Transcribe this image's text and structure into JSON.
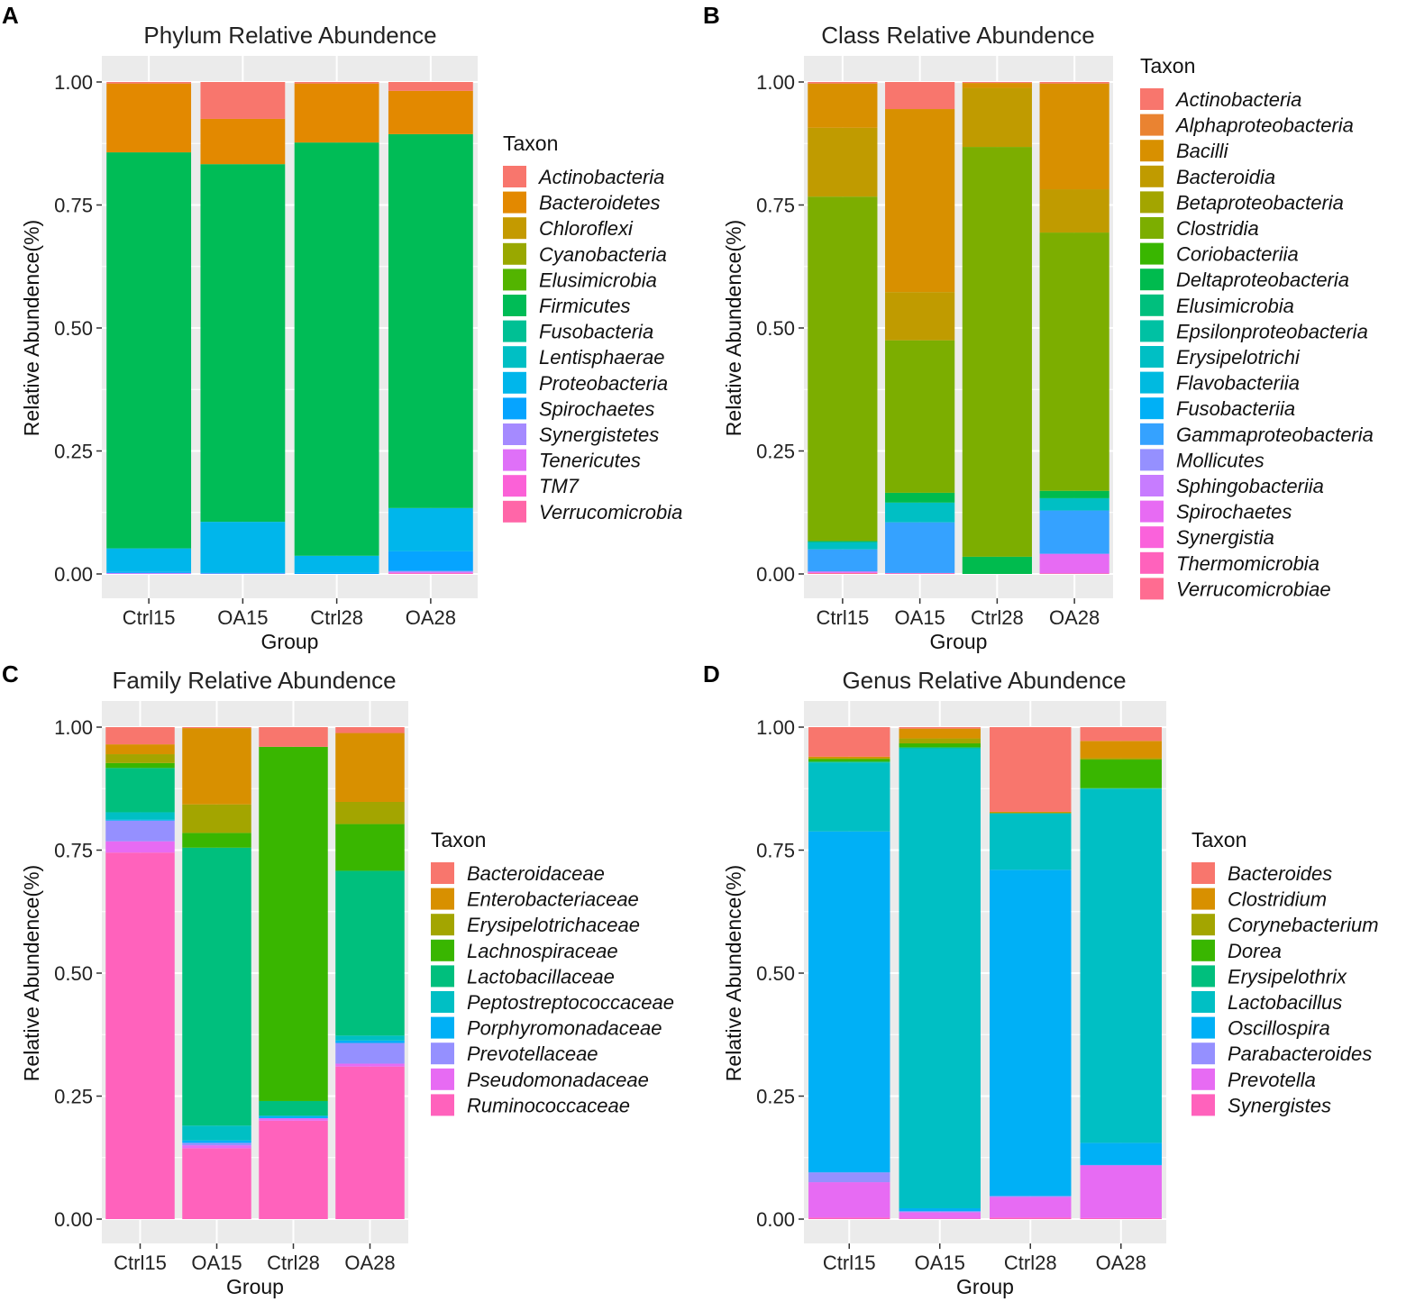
{
  "chart_data": [
    {
      "panel": "A",
      "type": "bar",
      "stacked": true,
      "title": "Phylum Relative Abundence",
      "xlabel": "Group",
      "ylabel": "Relative Abundence(%)",
      "ylim": [
        0,
        1
      ],
      "yticks": [
        "0.00",
        "0.25",
        "0.50",
        "0.75",
        "1.00"
      ],
      "categories": [
        "Ctrl15",
        "OA15",
        "Ctrl28",
        "OA28"
      ],
      "legend_title": "Taxon",
      "series": [
        {
          "name": "Actinobacteria",
          "color": "#F8766D",
          "values": [
            0.003,
            0.075,
            0.003,
            0.018
          ]
        },
        {
          "name": "Bacteroidetes",
          "color": "#E38900",
          "values": [
            0.14,
            0.092,
            0.12,
            0.088
          ]
        },
        {
          "name": "Chloroflexi",
          "color": "#C49A00",
          "values": [
            0,
            0,
            0,
            0
          ]
        },
        {
          "name": "Cyanobacteria",
          "color": "#99A800",
          "values": [
            0,
            0,
            0,
            0
          ]
        },
        {
          "name": "Elusimicrobia",
          "color": "#53B400",
          "values": [
            0,
            0,
            0,
            0
          ]
        },
        {
          "name": "Firmicutes",
          "color": "#00BC56",
          "values": [
            0.805,
            0.727,
            0.84,
            0.76
          ]
        },
        {
          "name": "Fusobacteria",
          "color": "#00C094",
          "values": [
            0,
            0,
            0,
            0
          ]
        },
        {
          "name": "Lentisphaerae",
          "color": "#00BFC4",
          "values": [
            0,
            0,
            0,
            0
          ]
        },
        {
          "name": "Proteobacteria",
          "color": "#00B6EB",
          "values": [
            0.048,
            0.104,
            0.035,
            0.088
          ]
        },
        {
          "name": "Spirochaetes",
          "color": "#06A4FF",
          "values": [
            0.002,
            0.001,
            0.002,
            0.04
          ]
        },
        {
          "name": "Synergistetes",
          "color": "#A58AFF",
          "values": [
            0.001,
            0.001,
            0,
            0.002
          ]
        },
        {
          "name": "Tenericutes",
          "color": "#DF70F8",
          "values": [
            0.001,
            0,
            0,
            0.002
          ]
        },
        {
          "name": "TM7",
          "color": "#FB61D7",
          "values": [
            0,
            0,
            0,
            0.001
          ]
        },
        {
          "name": "Verrucomicrobia",
          "color": "#FF66A8",
          "values": [
            0,
            0,
            0,
            0.001
          ]
        }
      ]
    },
    {
      "panel": "B",
      "type": "bar",
      "stacked": true,
      "title": "Class Relative Abundence",
      "xlabel": "Group",
      "ylabel": "Relative Abundence(%)",
      "ylim": [
        0,
        1
      ],
      "yticks": [
        "0.00",
        "0.25",
        "0.50",
        "0.75",
        "1.00"
      ],
      "categories": [
        "Ctrl15",
        "OA15",
        "Ctrl28",
        "OA28"
      ],
      "legend_title": "Taxon",
      "series": [
        {
          "name": "Actinobacteria",
          "color": "#F8766D",
          "values": [
            0.003,
            0.055,
            0.002,
            0.003
          ]
        },
        {
          "name": "Alphaproteobacteria",
          "color": "#EA8331",
          "values": [
            0,
            0,
            0,
            0
          ]
        },
        {
          "name": "Bacilli",
          "color": "#D89000",
          "values": [
            0.09,
            0.372,
            0.01,
            0.215
          ]
        },
        {
          "name": "Bacteroidia",
          "color": "#C09B00",
          "values": [
            0.14,
            0.098,
            0.12,
            0.088
          ]
        },
        {
          "name": "Betaproteobacteria",
          "color": "#A3A500",
          "values": [
            0,
            0,
            0,
            0
          ]
        },
        {
          "name": "Clostridia",
          "color": "#7CAE00",
          "values": [
            0.7,
            0.31,
            0.833,
            0.525
          ]
        },
        {
          "name": "Coriobacteriia",
          "color": "#39B600",
          "values": [
            0,
            0,
            0,
            0
          ]
        },
        {
          "name": "Deltaproteobacteria",
          "color": "#00BB4E",
          "values": [
            0.002,
            0.02,
            0.035,
            0.015
          ]
        },
        {
          "name": "Elusimicrobia",
          "color": "#00BF7D",
          "values": [
            0,
            0,
            0,
            0
          ]
        },
        {
          "name": "Epsilonproteobacteria",
          "color": "#00C1A3",
          "values": [
            0,
            0,
            0,
            0
          ]
        },
        {
          "name": "Erysipelotrichi",
          "color": "#00BFC4",
          "values": [
            0.015,
            0.04,
            0,
            0.025
          ]
        },
        {
          "name": "Flavobacteriia",
          "color": "#00BAE0",
          "values": [
            0,
            0,
            0,
            0
          ]
        },
        {
          "name": "Fusobacteriia",
          "color": "#00B0F6",
          "values": [
            0,
            0,
            0,
            0
          ]
        },
        {
          "name": "Gammaproteobacteria",
          "color": "#35A2FF",
          "values": [
            0.045,
            0.103,
            0,
            0.088
          ]
        },
        {
          "name": "Mollicutes",
          "color": "#9590FF",
          "values": [
            0,
            0,
            0,
            0
          ]
        },
        {
          "name": "Sphingobacteriia",
          "color": "#C77CFF",
          "values": [
            0,
            0,
            0,
            0
          ]
        },
        {
          "name": "Spirochaetes",
          "color": "#E76BF3",
          "values": [
            0.003,
            0.001,
            0,
            0.04
          ]
        },
        {
          "name": "Synergistia",
          "color": "#FA62DB",
          "values": [
            0,
            0,
            0,
            0
          ]
        },
        {
          "name": "Thermomicrobia",
          "color": "#FF62BC",
          "values": [
            0,
            0,
            0,
            0
          ]
        },
        {
          "name": "Verrucomicrobiae",
          "color": "#FF6C91",
          "values": [
            0.002,
            0.001,
            0,
            0.001
          ]
        }
      ]
    },
    {
      "panel": "C",
      "type": "bar",
      "stacked": true,
      "title": "Family Relative Abundence",
      "xlabel": "Group",
      "ylabel": "Relative Abundence(%)",
      "ylim": [
        0,
        1
      ],
      "yticks": [
        "0.00",
        "0.25",
        "0.50",
        "0.75",
        "1.00"
      ],
      "categories": [
        "Ctrl15",
        "OA15",
        "Ctrl28",
        "OA28"
      ],
      "legend_title": "Taxon",
      "series": [
        {
          "name": "Bacteroidaceae",
          "color": "#F8766D",
          "values": [
            0.035,
            0.002,
            0.04,
            0.012
          ]
        },
        {
          "name": "Enterobacteriaceae",
          "color": "#D89000",
          "values": [
            0.02,
            0.155,
            0,
            0.14
          ]
        },
        {
          "name": "Erysipelotrichaceae",
          "color": "#A3A500",
          "values": [
            0.018,
            0.058,
            0,
            0.045
          ]
        },
        {
          "name": "Lachnospiraceae",
          "color": "#39B600",
          "values": [
            0.01,
            0.03,
            0.72,
            0.095
          ]
        },
        {
          "name": "Lactobacillaceae",
          "color": "#00BF7D",
          "values": [
            0.09,
            0.565,
            0.03,
            0.335
          ]
        },
        {
          "name": "Peptostreptococcaceae",
          "color": "#00BFC4",
          "values": [
            0.015,
            0.03,
            0,
            0.01
          ]
        },
        {
          "name": "Porphyromonadaceae",
          "color": "#00B0F6",
          "values": [
            0.002,
            0.005,
            0.005,
            0.005
          ]
        },
        {
          "name": "Prevotellaceae",
          "color": "#9590FF",
          "values": [
            0.042,
            0.005,
            0,
            0.042
          ]
        },
        {
          "name": "Pseudomonadaceae",
          "color": "#E76BF3",
          "values": [
            0.023,
            0.006,
            0.005,
            0.006
          ]
        },
        {
          "name": "Ruminococcaceae",
          "color": "#FF62BC",
          "values": [
            0.745,
            0.144,
            0.2,
            0.31
          ]
        }
      ]
    },
    {
      "panel": "D",
      "type": "bar",
      "stacked": true,
      "title": "Genus Relative Abundence",
      "xlabel": "Group",
      "ylabel": "Relative Abundence(%)",
      "ylim": [
        0,
        1
      ],
      "yticks": [
        "0.00",
        "0.25",
        "0.50",
        "0.75",
        "1.00"
      ],
      "categories": [
        "Ctrl15",
        "OA15",
        "Ctrl28",
        "OA28"
      ],
      "legend_title": "Taxon",
      "series": [
        {
          "name": "Bacteroides",
          "color": "#F8766D",
          "values": [
            0.06,
            0.003,
            0.172,
            0.028
          ]
        },
        {
          "name": "Clostridium",
          "color": "#D89000",
          "values": [
            0.003,
            0.02,
            0.002,
            0.035
          ]
        },
        {
          "name": "Corynebacterium",
          "color": "#A3A500",
          "values": [
            0.002,
            0.01,
            0.001,
            0.003
          ]
        },
        {
          "name": "Dorea",
          "color": "#39B600",
          "values": [
            0.005,
            0.008,
            0,
            0.058
          ]
        },
        {
          "name": "Erysipelothrix",
          "color": "#00BF7D",
          "values": [
            0.002,
            0.002,
            0,
            0.001
          ]
        },
        {
          "name": "Lactobacillus",
          "color": "#00BFC4",
          "values": [
            0.14,
            0.935,
            0.115,
            0.72
          ]
        },
        {
          "name": "Oscillospira",
          "color": "#00B0F6",
          "values": [
            0.693,
            0.006,
            0.663,
            0.045
          ]
        },
        {
          "name": "Parabacteroides",
          "color": "#9590FF",
          "values": [
            0.02,
            0.002,
            0.002,
            0.001
          ]
        },
        {
          "name": "Prevotella",
          "color": "#E76BF3",
          "values": [
            0.072,
            0.013,
            0.042,
            0.107
          ]
        },
        {
          "name": "Synergistes",
          "color": "#FF62BC",
          "values": [
            0.003,
            0.001,
            0.003,
            0.002
          ]
        }
      ]
    }
  ]
}
